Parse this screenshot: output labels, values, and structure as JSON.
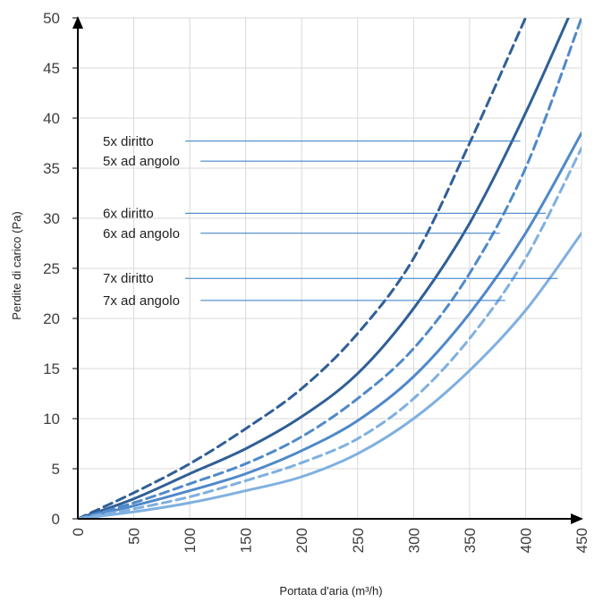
{
  "chart_data": {
    "type": "line",
    "title": "",
    "xlabel": "Portata d'aria (m³/h)",
    "ylabel": "Perdite di carico  (Pa)",
    "xlim": [
      0,
      450
    ],
    "ylim": [
      0,
      50
    ],
    "x_ticks": [
      "0",
      "50",
      "100",
      "150",
      "200",
      "250",
      "300",
      "350",
      "400",
      "450"
    ],
    "y_ticks": [
      "0",
      "5",
      "10",
      "15",
      "20",
      "25",
      "30",
      "35",
      "40",
      "45",
      "50"
    ],
    "grid": true,
    "x": [
      0,
      50,
      100,
      150,
      200,
      250,
      300,
      350,
      400,
      450
    ],
    "series": [
      {
        "name": "5x ad angolo",
        "style": "dashed",
        "color": "#305f96",
        "values": [
          0,
          2.6,
          5.5,
          9.0,
          13.0,
          18.5,
          26.0,
          37.5,
          50.0,
          null
        ]
      },
      {
        "name": "5x diritto",
        "style": "solid",
        "color": "#305f96",
        "values": [
          0,
          2.0,
          4.5,
          7.0,
          10.2,
          14.5,
          21.0,
          29.5,
          40.5,
          53.0
        ]
      },
      {
        "name": "6x ad angolo",
        "style": "dashed",
        "color": "#4f89c9",
        "values": [
          0,
          1.6,
          3.5,
          5.5,
          8.2,
          12.0,
          17.0,
          24.5,
          35.0,
          50.0
        ]
      },
      {
        "name": "6x diritto",
        "style": "solid",
        "color": "#4f89c9",
        "values": [
          0,
          1.3,
          2.8,
          4.5,
          6.8,
          9.8,
          14.2,
          20.5,
          28.5,
          38.5
        ]
      },
      {
        "name": "7x ad angolo",
        "style": "dashed",
        "color": "#7fb0e0",
        "values": [
          0,
          1.0,
          2.2,
          3.8,
          5.6,
          8.0,
          12.0,
          18.0,
          26.0,
          37.0
        ]
      },
      {
        "name": "7x diritto",
        "style": "solid",
        "color": "#7fb0e0",
        "values": [
          0,
          0.7,
          1.6,
          2.8,
          4.2,
          6.5,
          10.0,
          14.8,
          20.8,
          28.5
        ]
      }
    ],
    "annotations": [
      {
        "text": "5x diritto",
        "y": 37.7,
        "series": "5x diritto"
      },
      {
        "text": "5x ad angolo",
        "y": 35.7,
        "series": "5x ad angolo"
      },
      {
        "text": "6x diritto",
        "y": 30.5,
        "series": "6x diritto"
      },
      {
        "text": "6x ad angolo",
        "y": 28.5,
        "series": "6x ad angolo"
      },
      {
        "text": "7x diritto",
        "y": 24.0,
        "series": "7x diritto"
      },
      {
        "text": "7x ad angolo",
        "y": 21.8,
        "series": "7x ad angolo"
      }
    ],
    "colors": {
      "grid": "#d9d9d9",
      "axis": "#000000",
      "annotation_line": "#2f78c4"
    }
  }
}
